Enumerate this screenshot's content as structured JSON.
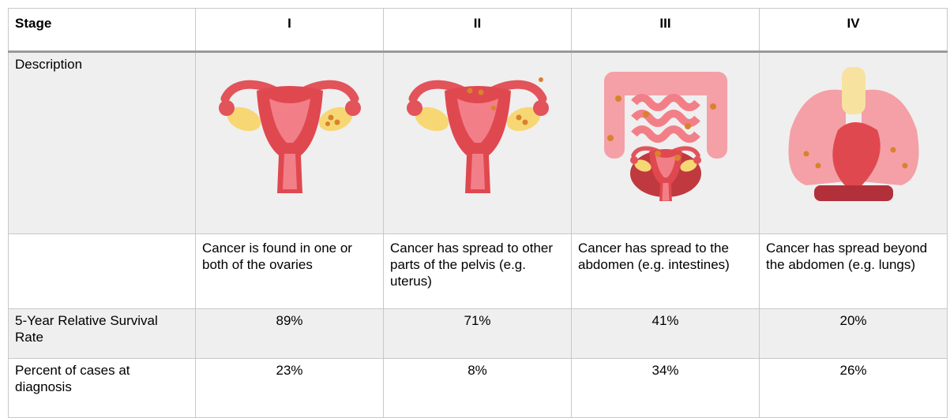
{
  "table": {
    "header": [
      "Stage",
      "I",
      "II",
      "III",
      "IV"
    ],
    "description_label": "Description",
    "descriptions": [
      "Cancer is found in one or both of the ovaries",
      "Cancer has spread to other parts of the pelvis (e.g. uterus)",
      "Cancer has spread to the abdomen (e.g. intestines)",
      "Cancer has spread beyond the abdomen (e.g. lungs)"
    ],
    "rows": [
      {
        "label": "5-Year Relative Survival Rate",
        "cells": [
          "89%",
          "71%",
          "41%",
          "20%"
        ]
      },
      {
        "label": "Percent of cases at diagnosis",
        "cells": [
          "23%",
          "8%",
          "34%",
          "26%"
        ]
      }
    ]
  }
}
